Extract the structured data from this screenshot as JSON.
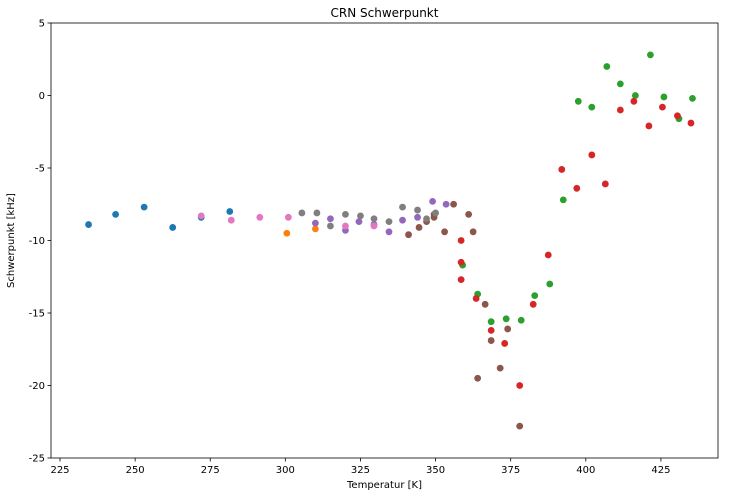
{
  "chart_data": {
    "type": "scatter",
    "title": "CRN Schwerpunkt",
    "xlabel": "Temperatur [K]",
    "ylabel": "Schwerpunkt [kHz]",
    "xlim": [
      222,
      444
    ],
    "ylim": [
      -25,
      5
    ],
    "xticks": [
      225,
      250,
      275,
      300,
      325,
      350,
      375,
      400,
      425
    ],
    "yticks": [
      5,
      0,
      -5,
      -10,
      -15,
      -20,
      -25
    ],
    "grid": false,
    "legend": "none",
    "series": [
      {
        "color": "#1f77b4",
        "points": [
          [
            234.5,
            -8.9
          ],
          [
            243.5,
            -8.2
          ],
          [
            253,
            -7.7
          ],
          [
            262.5,
            -9.1
          ],
          [
            272,
            -8.4
          ],
          [
            281.5,
            -8.0
          ]
        ]
      },
      {
        "color": "#ff7f0e",
        "points": [
          [
            300.5,
            -9.5
          ],
          [
            310,
            -9.2
          ]
        ]
      },
      {
        "color": "#2ca02c",
        "points": [
          [
            359,
            -11.7
          ],
          [
            364,
            -13.7
          ],
          [
            368.5,
            -15.6
          ],
          [
            373.5,
            -15.4
          ],
          [
            378.5,
            -15.5
          ],
          [
            383,
            -13.8
          ],
          [
            388,
            -13.0
          ],
          [
            392.5,
            -7.2
          ],
          [
            397.5,
            -0.4
          ],
          [
            402,
            -0.8
          ],
          [
            407,
            2.0
          ],
          [
            411.5,
            0.8
          ],
          [
            416.5,
            0.0
          ],
          [
            421.5,
            2.8
          ],
          [
            426,
            -0.1
          ],
          [
            431,
            -1.6
          ],
          [
            435.5,
            -0.2
          ]
        ]
      },
      {
        "color": "#d62728",
        "points": [
          [
            358.5,
            -10.0
          ],
          [
            358.5,
            -11.5
          ],
          [
            358.5,
            -12.7
          ],
          [
            363.5,
            -14.0
          ],
          [
            368.5,
            -16.2
          ],
          [
            373,
            -17.1
          ],
          [
            378,
            -20.0
          ],
          [
            382.5,
            -14.4
          ],
          [
            387.5,
            -11.0
          ],
          [
            392,
            -5.1
          ],
          [
            397,
            -6.4
          ],
          [
            402,
            -4.1
          ],
          [
            406.5,
            -6.1
          ],
          [
            411.5,
            -1.0
          ],
          [
            416,
            -0.4
          ],
          [
            421,
            -2.1
          ],
          [
            425.5,
            -0.8
          ],
          [
            430.5,
            -1.4
          ],
          [
            435,
            -1.9
          ]
        ]
      },
      {
        "color": "#9467bd",
        "points": [
          [
            310,
            -8.8
          ],
          [
            315,
            -8.5
          ],
          [
            320,
            -9.3
          ],
          [
            324.5,
            -8.7
          ],
          [
            329.5,
            -8.9
          ],
          [
            334.5,
            -9.4
          ],
          [
            339,
            -8.6
          ],
          [
            344,
            -8.4
          ],
          [
            349,
            -7.3
          ],
          [
            353.5,
            -7.5
          ]
        ]
      },
      {
        "color": "#8c564b",
        "points": [
          [
            341,
            -9.6
          ],
          [
            344.5,
            -9.1
          ],
          [
            347,
            -8.7
          ],
          [
            349.5,
            -8.2
          ],
          [
            349.5,
            -8.4
          ],
          [
            353,
            -9.4
          ],
          [
            356,
            -7.5
          ],
          [
            361,
            -8.2
          ],
          [
            362.5,
            -9.4
          ],
          [
            364,
            -19.5
          ],
          [
            366.5,
            -14.4
          ],
          [
            368.5,
            -16.9
          ],
          [
            371.5,
            -18.8
          ],
          [
            374,
            -16.1
          ],
          [
            378,
            -22.8
          ]
        ]
      },
      {
        "color": "#e377c2",
        "points": [
          [
            272,
            -8.3
          ],
          [
            282,
            -8.6
          ],
          [
            291.5,
            -8.4
          ],
          [
            301,
            -8.4
          ],
          [
            320,
            -9.0
          ],
          [
            329.5,
            -9.0
          ]
        ]
      },
      {
        "color": "#7f7f7f",
        "points": [
          [
            305.5,
            -8.1
          ],
          [
            310.5,
            -8.1
          ],
          [
            315,
            -9.0
          ],
          [
            320,
            -8.2
          ],
          [
            325,
            -8.3
          ],
          [
            329.5,
            -8.5
          ],
          [
            334.5,
            -8.7
          ],
          [
            339,
            -7.7
          ],
          [
            344,
            -7.9
          ],
          [
            347,
            -8.5
          ],
          [
            350,
            -8.1
          ]
        ]
      }
    ]
  }
}
